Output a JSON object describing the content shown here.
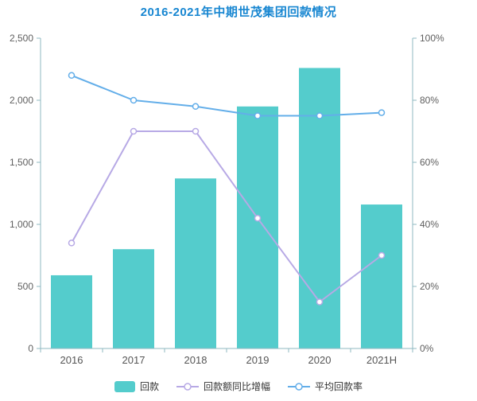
{
  "title": "2016-2021年中期世茂集团回款情况",
  "colors": {
    "title": "#1786D1",
    "axis_line": "#8FB8C2",
    "tick_label": "#5E5E5E",
    "x_label": "#555555",
    "legend_text": "#333333",
    "marker_fill": "#FFFFFF",
    "background": "#FFFFFF"
  },
  "chart_data": {
    "type": "bar",
    "title": "2016-2021年中期世茂集团回款情况",
    "categories": [
      "2016",
      "2017",
      "2018",
      "2019",
      "2020",
      "2021H"
    ],
    "series": [
      {
        "name": "回款",
        "type": "bar",
        "axis": "left",
        "color": "#54CCCC",
        "values": [
          590,
          800,
          1370,
          1950,
          2260,
          1160
        ]
      },
      {
        "name": "回款额同比增幅",
        "type": "line",
        "axis": "right",
        "color": "#B7A9E5",
        "values": [
          34,
          70,
          70,
          42,
          15,
          30
        ]
      },
      {
        "name": "平均回款率",
        "type": "line",
        "axis": "right",
        "color": "#63AEE9",
        "values": [
          88,
          80,
          78,
          75,
          75,
          76
        ]
      }
    ],
    "left_axis": {
      "min": 0,
      "max": 2500,
      "step": 500,
      "tick_labels": [
        "0",
        "500",
        "1,000",
        "1,500",
        "2,000",
        "2,500"
      ]
    },
    "right_axis": {
      "min": 0,
      "max": 100,
      "step": 20,
      "tick_labels": [
        "0%",
        "20%",
        "40%",
        "60%",
        "80%",
        "100%"
      ]
    },
    "xlabel": "",
    "ylabel": "",
    "grid": false,
    "legend_position": "bottom"
  }
}
